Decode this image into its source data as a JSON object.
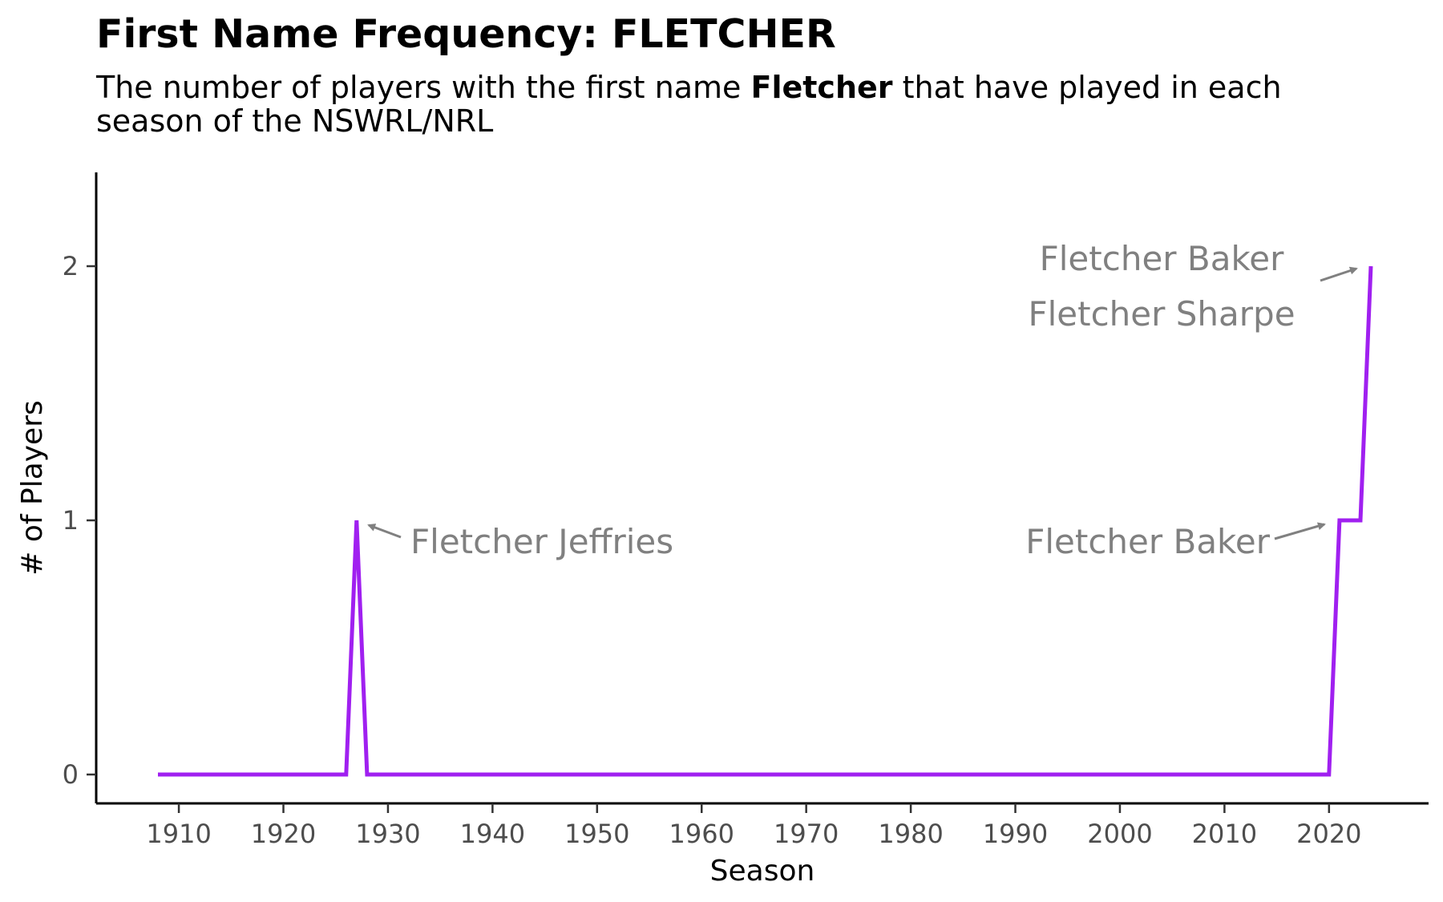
{
  "title": "First Name Frequency: FLETCHER",
  "subtitle": {
    "before": "The number of players with the first name ",
    "name": "Fletcher",
    "after": " that have played in each season of the NSWRL/NRL"
  },
  "chart_data": {
    "type": "line",
    "xlabel": "Season",
    "ylabel": "# of Players",
    "xlim": [
      1908,
      2024
    ],
    "ylim": [
      0,
      2
    ],
    "x_ticks": [
      1910,
      1920,
      1930,
      1940,
      1950,
      1960,
      1970,
      1980,
      1990,
      2000,
      2010,
      2020
    ],
    "y_ticks": [
      0,
      1,
      2
    ],
    "grid": false,
    "legend": "none",
    "series": [
      {
        "color": "#a020f0",
        "x": [
          1908,
          1926,
          1927,
          1928,
          2020,
          2021,
          2023,
          2024
        ],
        "y": [
          0,
          0,
          1,
          0,
          0,
          1,
          1,
          2
        ]
      }
    ],
    "annotations": [
      {
        "lines": [
          "Fletcher Jeffries"
        ],
        "x": 1927,
        "y": 1
      },
      {
        "lines": [
          "Fletcher Baker"
        ],
        "x": 2021,
        "y": 1
      },
      {
        "lines": [
          "Fletcher Baker",
          "Fletcher Sharpe"
        ],
        "x": 2024,
        "y": 2
      }
    ],
    "annotation_color": "#808080"
  }
}
